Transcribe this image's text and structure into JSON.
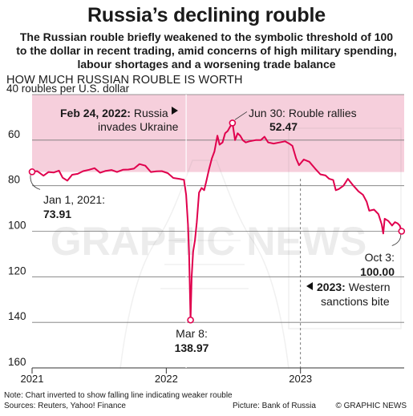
{
  "title": "Russia’s declining rouble",
  "subtitle": "The Russian rouble briefly weakened to the symbolic threshold of 100 to the dollar in recent trading, amid concerns of high military spending, labour shortages and a worsening trade balance",
  "section_heading": "HOW MUCH RUSSIAN ROUBLE IS WORTH",
  "watermark": "GRAPHIC NEWS",
  "footer": {
    "note": "Note: Chart inverted to show falling line indicating weaker rouble",
    "sources": "Sources: Reuters, Yahoo! Finance",
    "picture": "Picture: Bank of Russia",
    "copyright": "© GRAPHIC NEWS"
  },
  "colors": {
    "line": "#e0004d",
    "band": "#f6cfdc",
    "text": "#1a1a1a",
    "grid": "#777777"
  },
  "chart_data": {
    "type": "line",
    "inverted_y": true,
    "ylim": [
      40,
      160
    ],
    "y_ticks": [
      40,
      60,
      80,
      100,
      120,
      140,
      160
    ],
    "y_tick_labels": [
      "40 roubles per U.S. dollar",
      "60",
      "80",
      "100",
      "120",
      "140",
      "160"
    ],
    "x_ticks": [
      "2021-01-01",
      "2022-01-01",
      "2023-01-01"
    ],
    "x_tick_labels": [
      "2021",
      "2022",
      "2023"
    ],
    "xlim": [
      "2021-01-01",
      "2023-10-10"
    ],
    "shaded_range": [
      40,
      74
    ],
    "series": [
      {
        "points": [
          [
            "2021-01-01",
            73.91
          ],
          [
            "2021-01-15",
            73.6
          ],
          [
            "2021-02-01",
            75.6
          ],
          [
            "2021-02-15",
            74.0
          ],
          [
            "2021-03-01",
            74.2
          ],
          [
            "2021-03-15",
            73.4
          ],
          [
            "2021-03-25",
            76.5
          ],
          [
            "2021-04-07",
            77.8
          ],
          [
            "2021-04-20",
            75.2
          ],
          [
            "2021-05-05",
            74.8
          ],
          [
            "2021-05-20",
            73.6
          ],
          [
            "2021-06-05",
            73.0
          ],
          [
            "2021-06-20",
            72.3
          ],
          [
            "2021-07-05",
            74.3
          ],
          [
            "2021-07-20",
            73.5
          ],
          [
            "2021-08-05",
            73.1
          ],
          [
            "2021-08-20",
            74.0
          ],
          [
            "2021-09-05",
            73.0
          ],
          [
            "2021-09-20",
            72.9
          ],
          [
            "2021-10-05",
            72.5
          ],
          [
            "2021-10-20",
            70.5
          ],
          [
            "2021-11-05",
            71.2
          ],
          [
            "2021-11-20",
            74.0
          ],
          [
            "2021-12-05",
            73.7
          ],
          [
            "2021-12-20",
            73.6
          ],
          [
            "2022-01-05",
            74.5
          ],
          [
            "2022-01-20",
            76.6
          ],
          [
            "2022-02-05",
            77.0
          ],
          [
            "2022-02-18",
            77.4
          ],
          [
            "2022-02-24",
            84.0
          ],
          [
            "2022-03-01",
            97.0
          ],
          [
            "2022-03-04",
            110.0
          ],
          [
            "2022-03-08",
            138.97
          ],
          [
            "2022-03-11",
            120.0
          ],
          [
            "2022-03-15",
            109.0
          ],
          [
            "2022-03-20",
            104.0
          ],
          [
            "2022-03-25",
            96.0
          ],
          [
            "2022-03-31",
            83.0
          ],
          [
            "2022-04-07",
            81.0
          ],
          [
            "2022-04-14",
            82.0
          ],
          [
            "2022-04-20",
            78.0
          ],
          [
            "2022-04-27",
            73.0
          ],
          [
            "2022-05-05",
            68.0
          ],
          [
            "2022-05-12",
            65.0
          ],
          [
            "2022-05-20",
            58.0
          ],
          [
            "2022-05-26",
            62.0
          ],
          [
            "2022-06-03",
            61.0
          ],
          [
            "2022-06-10",
            57.0
          ],
          [
            "2022-06-17",
            56.0
          ],
          [
            "2022-06-24",
            54.0
          ],
          [
            "2022-06-30",
            52.47
          ],
          [
            "2022-07-07",
            60.0
          ],
          [
            "2022-07-14",
            57.0
          ],
          [
            "2022-07-21",
            58.0
          ],
          [
            "2022-07-28",
            60.0
          ],
          [
            "2022-08-05",
            61.0
          ],
          [
            "2022-08-15",
            60.5
          ],
          [
            "2022-09-01",
            60.0
          ],
          [
            "2022-09-15",
            60.0
          ],
          [
            "2022-09-25",
            58.5
          ],
          [
            "2022-10-05",
            61.0
          ],
          [
            "2022-10-20",
            61.5
          ],
          [
            "2022-11-05",
            61.0
          ],
          [
            "2022-11-20",
            60.5
          ],
          [
            "2022-12-01",
            61.5
          ],
          [
            "2022-12-10",
            62.5
          ],
          [
            "2022-12-20",
            68.0
          ],
          [
            "2022-12-28",
            71.0
          ],
          [
            "2023-01-10",
            68.5
          ],
          [
            "2023-01-25",
            69.5
          ],
          [
            "2023-02-10",
            72.5
          ],
          [
            "2023-02-24",
            75.0
          ],
          [
            "2023-03-10",
            75.5
          ],
          [
            "2023-03-20",
            77.0
          ],
          [
            "2023-03-31",
            77.5
          ],
          [
            "2023-04-07",
            82.0
          ],
          [
            "2023-04-15",
            81.5
          ],
          [
            "2023-04-28",
            80.0
          ],
          [
            "2023-05-10",
            77.0
          ],
          [
            "2023-05-25",
            80.0
          ],
          [
            "2023-06-08",
            82.5
          ],
          [
            "2023-06-20",
            84.0
          ],
          [
            "2023-06-30",
            87.0
          ],
          [
            "2023-07-07",
            91.0
          ],
          [
            "2023-07-20",
            90.5
          ],
          [
            "2023-08-01",
            92.5
          ],
          [
            "2023-08-10",
            97.0
          ],
          [
            "2023-08-14",
            101.0
          ],
          [
            "2023-08-18",
            94.5
          ],
          [
            "2023-08-28",
            95.5
          ],
          [
            "2023-09-07",
            97.5
          ],
          [
            "2023-09-15",
            96.0
          ],
          [
            "2023-09-22",
            96.5
          ],
          [
            "2023-09-28",
            97.5
          ],
          [
            "2023-10-03",
            100.0
          ]
        ]
      }
    ],
    "markers": [
      {
        "date": "2021-01-01",
        "value": 73.91
      },
      {
        "date": "2022-03-08",
        "value": 138.97
      },
      {
        "date": "2022-06-30",
        "value": 52.47
      },
      {
        "date": "2023-10-03",
        "value": 100.0
      }
    ],
    "annotations": [
      {
        "date_text": "Jan 1, 2021:",
        "value_text": "73.91"
      },
      {
        "date_text": "Mar 8:",
        "value_text": "138.97"
      },
      {
        "date_text": "Jun 30:",
        "text": "Rouble rallies",
        "value_text": "52.47"
      },
      {
        "date_text": "Oct 3:",
        "value_text": "100.00"
      }
    ],
    "events": [
      {
        "date": "2022-02-24",
        "bold": "Feb 24, 2022:",
        "text": "Russia",
        "text2": "invades Ukraine",
        "arrow": "right"
      },
      {
        "date": "2023-01-01",
        "bold": "2023:",
        "text": "Western",
        "text2": "sanctions bite",
        "arrow": "left"
      }
    ]
  }
}
